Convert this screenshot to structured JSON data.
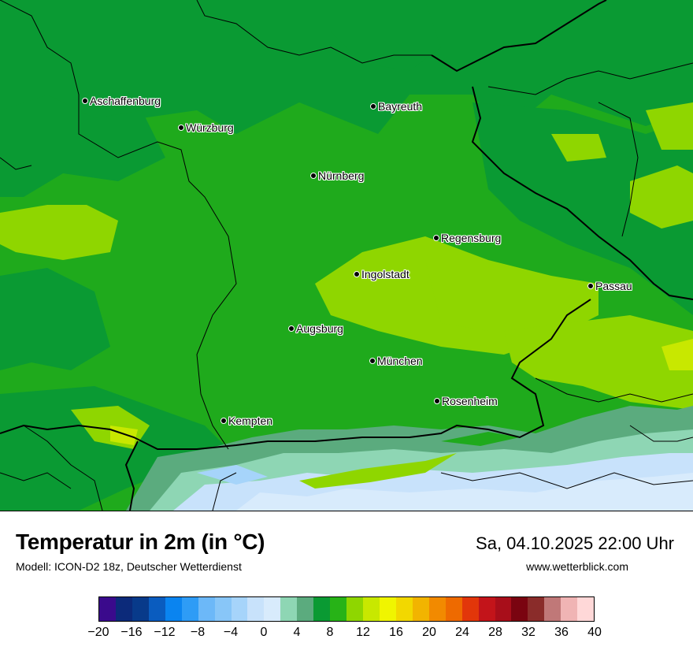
{
  "title": "Temperatur in 2m (in °C)",
  "model": "Modell: ICON-D2 18z, Deutscher Wetterdienst",
  "datetime": "Sa, 04.10.2025 22:00 Uhr",
  "website": "www.wetterblick.com",
  "cities": [
    {
      "name": "Aschaffenburg"
    },
    {
      "name": "Würzburg"
    },
    {
      "name": "Bayreuth"
    },
    {
      "name": "Nürnberg"
    },
    {
      "name": "Regensburg"
    },
    {
      "name": "Ingolstadt"
    },
    {
      "name": "Passau"
    },
    {
      "name": "Augsburg"
    },
    {
      "name": "München"
    },
    {
      "name": "Rosenheim"
    },
    {
      "name": "Kempten"
    }
  ],
  "legend": {
    "ticks": [
      "−20",
      "−16",
      "−12",
      "−8",
      "−4",
      "0",
      "4",
      "8",
      "12",
      "16",
      "20",
      "24",
      "28",
      "32",
      "36",
      "40"
    ],
    "colors": [
      "#3a0a8c",
      "#0c2a7a",
      "#083a8a",
      "#0a5cbf",
      "#0a84f0",
      "#2e9cf6",
      "#6cb8f8",
      "#88c6f8",
      "#a6d4fa",
      "#c8e2fb",
      "#d8ebfc",
      "#8ed6b4",
      "#5bab7e",
      "#0a9a33",
      "#27b317",
      "#8fd600",
      "#c8e800",
      "#f0f500",
      "#f2d800",
      "#f2b400",
      "#f28a00",
      "#ee6a00",
      "#e2360a",
      "#c3141a",
      "#a80e1a",
      "#7a0410",
      "#8a2c2a",
      "#c07878",
      "#f0b4b4",
      "#ffd8d8"
    ]
  }
}
